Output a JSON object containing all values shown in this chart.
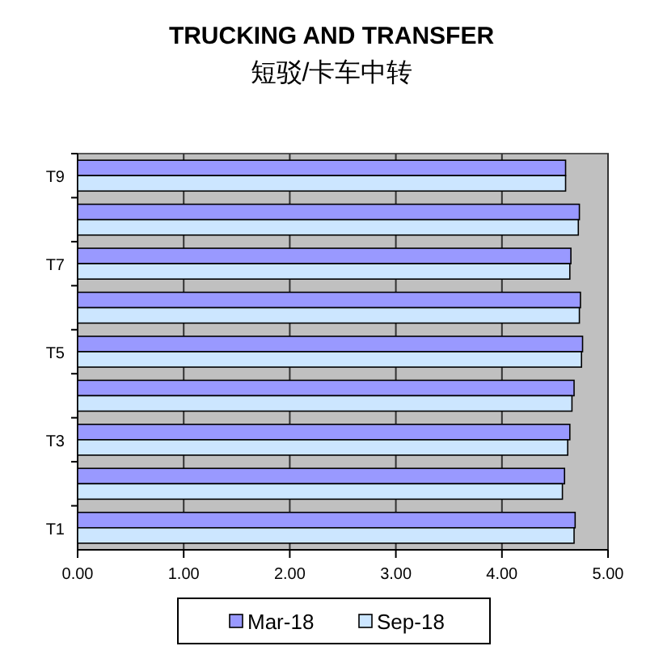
{
  "chart_data": {
    "type": "bar",
    "orientation": "horizontal",
    "title": "TRUCKING AND TRANSFER",
    "subtitle": "短驳/卡车中转",
    "categories": [
      "T9",
      null,
      "T7",
      null,
      "T5",
      null,
      "T3",
      null,
      "T1"
    ],
    "series": [
      {
        "name": "Mar-18",
        "color": "#9999ff",
        "values": [
          4.6,
          4.73,
          4.65,
          4.74,
          4.76,
          4.68,
          4.64,
          4.59,
          4.69
        ]
      },
      {
        "name": "Sep-18",
        "color": "#cce6ff",
        "values": [
          4.6,
          4.72,
          4.64,
          4.73,
          4.75,
          4.66,
          4.62,
          4.57,
          4.68
        ]
      }
    ],
    "xlim": [
      0,
      5
    ],
    "xticks": [
      {
        "value": 0,
        "label": "0.00"
      },
      {
        "value": 1,
        "label": "1.00"
      },
      {
        "value": 2,
        "label": "2.00"
      },
      {
        "value": 3,
        "label": "3.00"
      },
      {
        "value": 4,
        "label": "4.00"
      },
      {
        "value": 5,
        "label": "5.00"
      }
    ],
    "grid": "x",
    "legend": "bottom"
  }
}
